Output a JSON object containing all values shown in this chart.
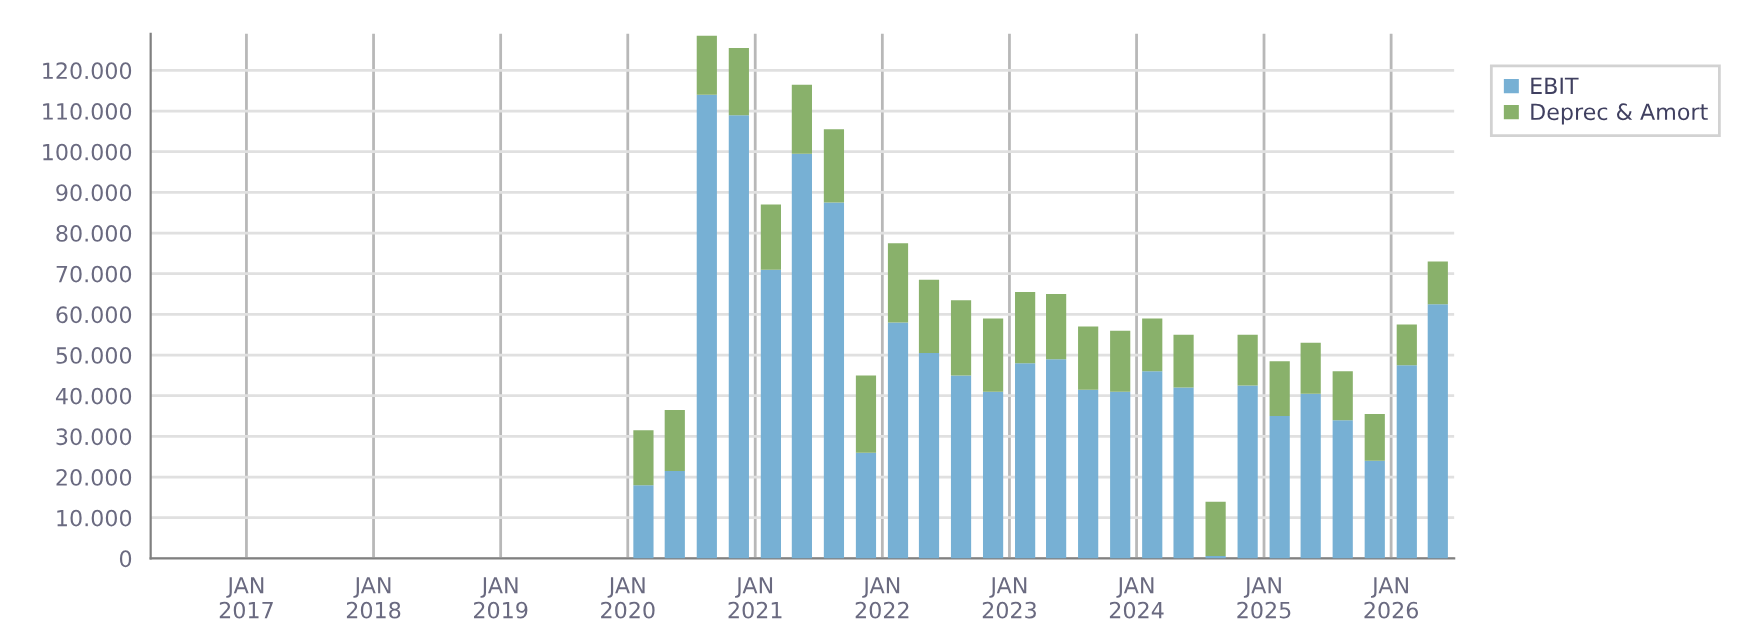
{
  "chart_data": {
    "type": "bar",
    "stacked": true,
    "x": [
      "2020-02-15",
      "2020-05-15",
      "2020-08-15",
      "2020-11-15",
      "2021-02-15",
      "2021-05-15",
      "2021-08-15",
      "2021-11-15",
      "2022-02-15",
      "2022-05-15",
      "2022-08-15",
      "2022-11-15",
      "2023-02-15",
      "2023-05-15",
      "2023-08-15",
      "2023-11-15",
      "2024-02-15",
      "2024-05-15",
      "2024-08-15",
      "2024-11-15",
      "2025-02-15",
      "2025-05-15",
      "2025-08-15",
      "2025-11-15",
      "2026-02-15",
      "2026-05-15"
    ],
    "series": [
      {
        "name": "EBIT",
        "color": "#77b0d4",
        "values": [
          18000,
          21500,
          114000,
          109000,
          71000,
          99500,
          87500,
          26000,
          58000,
          50500,
          45000,
          41000,
          48000,
          49000,
          41500,
          41000,
          46000,
          42000,
          600,
          42500,
          35000,
          40500,
          34000,
          24000,
          47500,
          62500
        ]
      },
      {
        "name": "Deprec & Amort",
        "color": "#89b16b",
        "values": [
          13500,
          15000,
          14500,
          16500,
          16000,
          17000,
          18000,
          19000,
          19500,
          18000,
          18500,
          18000,
          17500,
          16000,
          15500,
          15000,
          13000,
          13000,
          13300,
          12500,
          13500,
          12500,
          12000,
          11500,
          10000,
          10500
        ]
      }
    ],
    "xlim": [
      "2016-04-01",
      "2026-07-01"
    ],
    "xticks": [
      {
        "value": "2017-01-01",
        "label": "JAN\n2017"
      },
      {
        "value": "2018-01-01",
        "label": "JAN\n2018"
      },
      {
        "value": "2019-01-01",
        "label": "JAN\n2019"
      },
      {
        "value": "2020-01-01",
        "label": "JAN\n2020"
      },
      {
        "value": "2021-01-01",
        "label": "JAN\n2021"
      },
      {
        "value": "2022-01-01",
        "label": "JAN\n2022"
      },
      {
        "value": "2023-01-01",
        "label": "JAN\n2023"
      },
      {
        "value": "2024-01-01",
        "label": "JAN\n2024"
      },
      {
        "value": "2025-01-01",
        "label": "JAN\n2025"
      },
      {
        "value": "2026-01-01",
        "label": "JAN\n2026"
      }
    ],
    "ylim": [
      0,
      129000
    ],
    "yticks": [
      0,
      {
        "value": 10000,
        "label": "10.000"
      },
      {
        "value": 20000,
        "label": "20.000"
      },
      {
        "value": 30000,
        "label": "30.000"
      },
      {
        "value": 40000,
        "label": "40.000"
      },
      {
        "value": 50000,
        "label": "50.000"
      },
      {
        "value": 60000,
        "label": "60.000"
      },
      {
        "value": 70000,
        "label": "70.000"
      },
      {
        "value": 80000,
        "label": "80.000"
      },
      {
        "value": 90000,
        "label": "90.000"
      },
      {
        "value": 100000,
        "label": "100.000"
      },
      {
        "value": 110000,
        "label": "110.000"
      },
      {
        "value": 120000,
        "label": "120.000"
      }
    ],
    "grid": true,
    "legend": "top right"
  }
}
